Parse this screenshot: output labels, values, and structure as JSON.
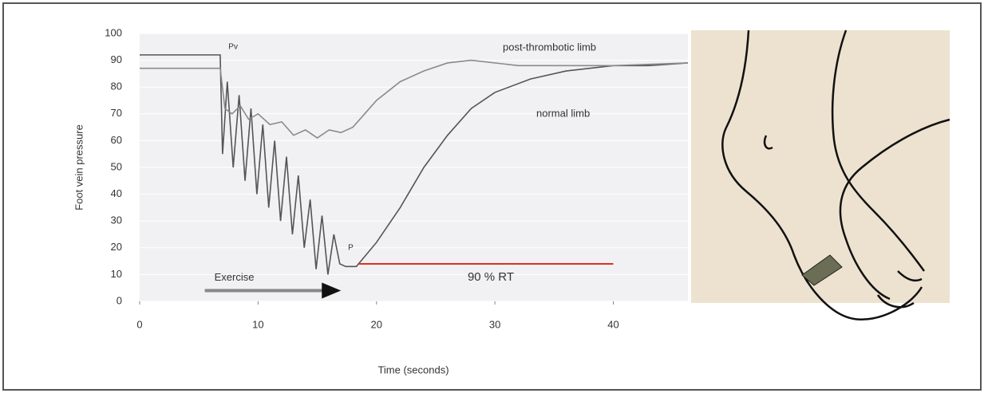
{
  "chart_data": {
    "type": "line",
    "x_label": "Time (seconds)",
    "y_label": "Foot vein pressure",
    "xlim": [
      0,
      46.3
    ],
    "ylim": [
      0,
      100
    ],
    "xticks": [
      0,
      10,
      20,
      30,
      40
    ],
    "yticks": [
      0,
      10,
      20,
      30,
      40,
      50,
      60,
      70,
      80,
      90,
      100
    ],
    "series": [
      {
        "name": "normal limb",
        "color": "#555555",
        "x": [
          0,
          6.8,
          7.0,
          7.4,
          7.9,
          8.4,
          8.9,
          9.4,
          9.9,
          10.4,
          10.9,
          11.4,
          11.9,
          12.4,
          12.9,
          13.4,
          13.9,
          14.4,
          14.9,
          15.4,
          15.9,
          16.4,
          16.9,
          17.4,
          18.3,
          20,
          22,
          24,
          26,
          28,
          30,
          33,
          36,
          40,
          43,
          46.3
        ],
        "values": [
          92,
          92,
          55,
          82,
          50,
          77,
          45,
          72,
          40,
          66,
          35,
          60,
          30,
          54,
          25,
          47,
          20,
          38,
          12,
          32,
          10,
          25,
          14,
          13,
          13,
          22,
          35,
          50,
          62,
          72,
          78,
          83,
          86,
          88,
          88,
          89
        ]
      },
      {
        "name": "post-thrombotic limb",
        "color": "#8a8a8a",
        "x": [
          0,
          6.8,
          7.2,
          7.8,
          8.5,
          9.2,
          10,
          11,
          12,
          13,
          14,
          15,
          16,
          17,
          18,
          19,
          20,
          22,
          24,
          26,
          28,
          32,
          36,
          40,
          46.3
        ],
        "values": [
          87,
          87,
          72,
          70,
          73,
          68,
          70,
          66,
          67,
          62,
          64,
          61,
          64,
          63,
          65,
          70,
          75,
          82,
          86,
          89,
          90,
          88,
          88,
          88,
          89
        ]
      }
    ],
    "rt_line": {
      "label": "90 % RT",
      "color": "#e03020",
      "y": 14,
      "x": [
        18.5,
        40
      ]
    },
    "exercise": {
      "label": "Exercise",
      "y": 4,
      "x": [
        5.5,
        17
      ]
    },
    "annotations": [
      "Pv",
      "P"
    ]
  }
}
